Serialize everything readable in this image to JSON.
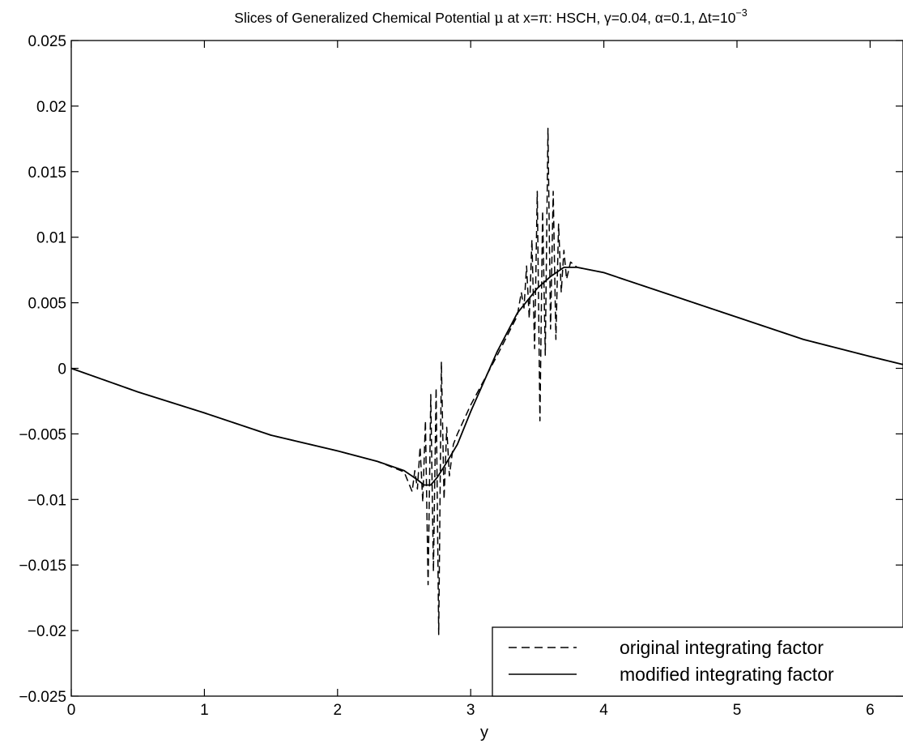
{
  "chart_data": {
    "type": "line",
    "title": {
      "prefix": "Slices of Generalized Chemical Potential ",
      "mu": "μ",
      "middle": " at x=π: HSCH, γ=0.04, α=0.1, Δt=10",
      "exponent": "−3"
    },
    "xlabel": "y",
    "ylabel": "",
    "xlim": [
      0,
      6.2832
    ],
    "ylim": [
      -0.025,
      0.025
    ],
    "x_ticks": [
      0,
      1,
      2,
      3,
      4,
      5,
      6
    ],
    "x_tick_labels": [
      "0",
      "1",
      "2",
      "3",
      "4",
      "5",
      "6"
    ],
    "y_ticks": [
      0.025,
      0.02,
      0.015,
      0.01,
      0.005,
      0,
      -0.005,
      -0.01,
      -0.015,
      -0.02,
      -0.025
    ],
    "y_tick_labels": [
      "0.025",
      "0.02",
      "0.015",
      "0.01",
      "0.005",
      "0",
      "−0.005",
      "−0.01",
      "−0.015",
      "−0.02",
      "−0.025"
    ],
    "grid": false,
    "legend_position": "bottom-right",
    "series": [
      {
        "name": "original integrating factor",
        "style": "dashed",
        "color": "#000000",
        "points": [
          [
            0,
            0
          ],
          [
            0.5,
            -0.0018
          ],
          [
            1.0,
            -0.0034
          ],
          [
            1.5,
            -0.0051
          ],
          [
            2.0,
            -0.0063
          ],
          [
            2.3,
            -0.0071
          ],
          [
            2.5,
            -0.0079
          ],
          [
            2.56,
            -0.0094
          ],
          [
            2.58,
            -0.0078
          ],
          [
            2.6,
            -0.0092
          ],
          [
            2.62,
            -0.006
          ],
          [
            2.64,
            -0.0102
          ],
          [
            2.66,
            -0.004
          ],
          [
            2.68,
            -0.0165
          ],
          [
            2.7,
            -0.002
          ],
          [
            2.72,
            -0.0155
          ],
          [
            2.74,
            -0.0015
          ],
          [
            2.76,
            -0.0203
          ],
          [
            2.78,
            0.0005
          ],
          [
            2.8,
            -0.01
          ],
          [
            2.82,
            -0.0045
          ],
          [
            2.84,
            -0.0082
          ],
          [
            2.87,
            -0.0058
          ],
          [
            2.9,
            -0.005
          ],
          [
            3.0,
            -0.0028
          ],
          [
            3.2,
            0.001
          ],
          [
            3.35,
            0.004
          ],
          [
            3.38,
            0.0058
          ],
          [
            3.4,
            0.0046
          ],
          [
            3.42,
            0.0078
          ],
          [
            3.44,
            0.0038
          ],
          [
            3.46,
            0.0098
          ],
          [
            3.48,
            0.0015
          ],
          [
            3.5,
            0.0135
          ],
          [
            3.52,
            -0.004
          ],
          [
            3.54,
            0.012
          ],
          [
            3.56,
            0.001
          ],
          [
            3.58,
            0.0183
          ],
          [
            3.6,
            0.003
          ],
          [
            3.62,
            0.0135
          ],
          [
            3.64,
            0.0022
          ],
          [
            3.66,
            0.011
          ],
          [
            3.68,
            0.0058
          ],
          [
            3.7,
            0.009
          ],
          [
            3.72,
            0.0068
          ],
          [
            3.75,
            0.0081
          ],
          [
            3.8,
            0.0077
          ],
          [
            4.0,
            0.0073
          ],
          [
            4.5,
            0.0056
          ],
          [
            5.0,
            0.0039
          ],
          [
            5.5,
            0.0022
          ],
          [
            6.0,
            0.0009
          ],
          [
            6.2832,
            0.0002
          ]
        ]
      },
      {
        "name": "modified integrating factor",
        "style": "solid",
        "color": "#000000",
        "points": [
          [
            0,
            0
          ],
          [
            0.5,
            -0.0018
          ],
          [
            1.0,
            -0.0034
          ],
          [
            1.5,
            -0.0051
          ],
          [
            2.0,
            -0.0063
          ],
          [
            2.3,
            -0.0071
          ],
          [
            2.5,
            -0.0078
          ],
          [
            2.6,
            -0.0085
          ],
          [
            2.65,
            -0.0089
          ],
          [
            2.7,
            -0.0089
          ],
          [
            2.75,
            -0.0083
          ],
          [
            2.8,
            -0.0075
          ],
          [
            2.9,
            -0.0058
          ],
          [
            3.0,
            -0.0033
          ],
          [
            3.2,
            0.0013
          ],
          [
            3.35,
            0.0042
          ],
          [
            3.5,
            0.0061
          ],
          [
            3.6,
            0.007
          ],
          [
            3.7,
            0.0077
          ],
          [
            3.8,
            0.0077
          ],
          [
            4.0,
            0.0073
          ],
          [
            4.5,
            0.0056
          ],
          [
            5.0,
            0.0039
          ],
          [
            5.5,
            0.0022
          ],
          [
            6.0,
            0.0009
          ],
          [
            6.2832,
            0.0002
          ]
        ]
      }
    ]
  }
}
